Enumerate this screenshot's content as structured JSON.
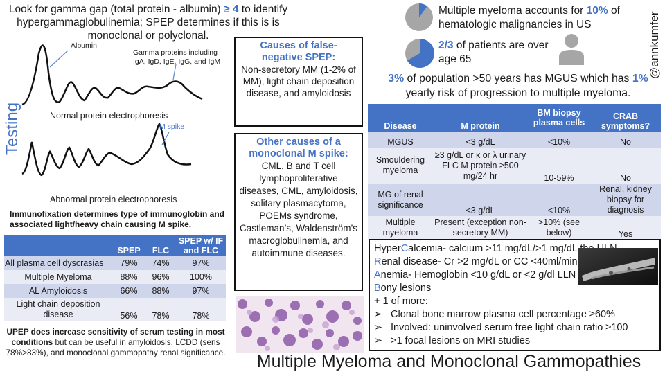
{
  "testing": {
    "intro_pre": "Look for gamma gap (total protein - albumin) ",
    "intro_gap": "≥ 4",
    "intro_post": " to identify hypergammaglobulinemia; SPEP determines  if this is is monoclonal or polyclonal.",
    "side_label": "Testing",
    "albumin_label": "Albumin",
    "gamma_label": "Gamma proteins including IgA, IgD, IgE, IgG, and IgM",
    "normal_caption": "Normal protein electrophoresis",
    "mspike_label": "M spike",
    "abnormal_caption": "Abnormal protein electrophoresis",
    "immunofix": "Immunofixation determines type of immunoglobin and associated light/heavy chain causing M spike.",
    "sens_headers": [
      "",
      "SPEP",
      "FLC",
      "SPEP w/ IF and FLC"
    ],
    "sens_rows": [
      [
        "All plasma cell dyscrasias",
        "79%",
        "74%",
        "97%"
      ],
      [
        "Multiple Myeloma",
        "88%",
        "96%",
        "100%"
      ],
      [
        "AL Amyloidosis",
        "66%",
        "88%",
        "97%"
      ],
      [
        "Light chain deposition disease",
        "56%",
        "78%",
        "78%"
      ]
    ],
    "upep_bold": "UPEP does increase sensitivity of serum testing  in most conditions",
    "upep_rest": " but can be useful in amyloidosis, LCDD (sens 78%>83%), and monoclonal gammopathy renal significance."
  },
  "false_negative": {
    "title": "Causes of false-negative SPEP:",
    "body": "Non-secretory MM (1-2% of MM), light chain deposition disease, and amyloidosis"
  },
  "other_causes": {
    "title": "Other causes of a monoclonal M spike:",
    "body": "CML, B and T cell lymphoproliferative diseases, CML, amyloidosis, solitary plasmacytoma, POEMs syndrome, Castleman’s, Waldenström’s macroglobulinemia, and autoimmune diseases."
  },
  "epi": {
    "handle": "@annkumfer",
    "stat1_pre": "Multiple myeloma accounts for ",
    "stat1_pct": "10%",
    "stat1_post": " of hematologic malignancies in US",
    "stat2_frac": "2/3",
    "stat2_post": " of patients are over age 65",
    "mgus_pct": "3%",
    "mgus_mid": " of population >50 years has MGUS which has ",
    "mgus_risk": "1%",
    "mgus_post": " yearly risk of progression to multiple myeloma.",
    "pie1_fraction": 0.1,
    "pie2_fraction": 0.667
  },
  "disease_table": {
    "headers": [
      "Disease",
      "M protein",
      "BM biopsy plasma cells",
      "CRAB symptoms?"
    ],
    "rows": [
      [
        "MGUS",
        "<3 g/dL",
        "<10%",
        "No"
      ],
      [
        "Smouldering myeloma",
        "≥3 g/dL or κ or λ urinary FLC M protein ≥500 mg/24 hr",
        "10-59%",
        "No"
      ],
      [
        "MG of renal significance",
        "<3 g/dL",
        "<10%",
        "Renal, kidney biopsy for diagnosis"
      ],
      [
        "Multiple myeloma",
        "Present (exception non-secretory MM)",
        ">10% (see below)",
        "Yes"
      ]
    ]
  },
  "crab": {
    "c_pre": "Hyper",
    "c_letter": "C",
    "c_text": "alcemia-  calcium >11 mg/dL/>1 mg/dL the ULN",
    "r_letter": "R",
    "r_text": "enal disease- Cr >2 mg/dL or CC <40ml/min",
    "a_letter": "A",
    "a_text": "nemia- Hemoglobin <10 g/dL or <2 g/dl LLN",
    "b_letter": "B",
    "b_text": "ony lesions",
    "plus": "+ 1 of more:",
    "bullets": [
      "Clonal bone marrow plasma cell percentage ≥60%",
      "Involved: uninvolved serum free light chain ratio ≥100",
      ">1 focal lesions on MRI studies"
    ]
  },
  "page_title": "Multiple Myeloma and Monoclonal Gammopathies",
  "colors": {
    "accent": "#4472c4",
    "pie_gray": "#a6a6a6",
    "table_band_a": "#cfd5ea",
    "table_band_b": "#e9ebf5"
  }
}
